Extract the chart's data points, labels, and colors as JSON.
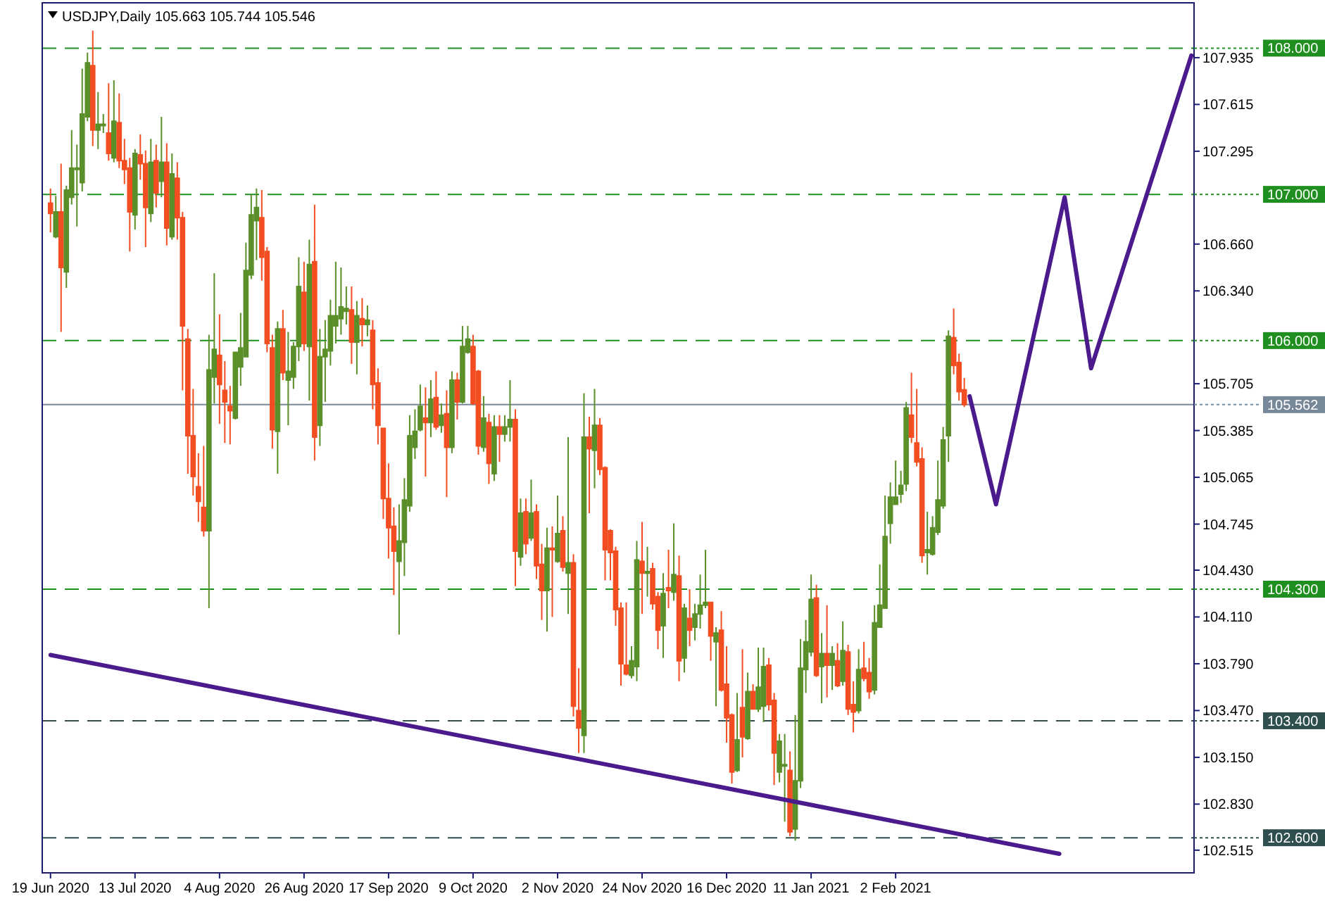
{
  "chart_data": {
    "type": "candlestick",
    "title": "USDJPY,Daily  105.663 105.744 105.546",
    "categories": [
      "19 Jun 2020",
      null,
      null,
      null,
      null,
      null,
      null,
      null,
      null,
      null,
      null,
      null,
      null,
      null,
      null,
      null,
      "13 Jul 2020",
      null,
      null,
      null,
      null,
      null,
      null,
      null,
      null,
      null,
      null,
      null,
      null,
      null,
      null,
      null,
      "4 Aug 2020",
      null,
      null,
      null,
      null,
      null,
      null,
      null,
      null,
      null,
      null,
      null,
      null,
      null,
      null,
      null,
      "26 Aug 2020",
      null,
      null,
      null,
      null,
      null,
      null,
      null,
      null,
      null,
      null,
      null,
      null,
      null,
      null,
      null,
      "17 Sep 2020",
      null,
      null,
      null,
      null,
      null,
      null,
      null,
      null,
      null,
      null,
      null,
      null,
      null,
      null,
      null,
      "9 Oct 2020",
      null,
      null,
      null,
      null,
      null,
      null,
      null,
      null,
      null,
      null,
      null,
      null,
      null,
      null,
      null,
      "2 Nov 2020",
      null,
      null,
      null,
      null,
      null,
      null,
      null,
      null,
      null,
      null,
      null,
      null,
      null,
      null,
      null,
      "24 Nov 2020",
      null,
      null,
      null,
      null,
      null,
      null,
      null,
      null,
      null,
      null,
      null,
      null,
      null,
      null,
      null,
      "16 Dec 2020",
      null,
      null,
      null,
      null,
      null,
      null,
      null,
      null,
      null,
      null,
      null,
      null,
      null,
      null,
      null,
      "11 Jan 2021",
      null,
      null,
      null,
      null,
      null,
      null,
      null,
      null,
      null,
      null,
      null,
      null,
      null,
      null,
      null,
      "2 Feb 2021",
      null,
      null,
      null,
      null,
      null,
      null,
      null,
      null,
      null,
      null,
      null,
      null,
      null,
      null,
      null,
      null,
      null,
      null,
      null,
      null,
      null,
      null,
      null,
      null,
      null,
      null,
      null,
      null,
      null,
      null,
      null,
      null,
      null,
      null,
      null,
      null,
      null,
      null,
      null,
      null,
      null,
      null,
      null,
      null,
      null,
      null,
      null,
      null,
      null,
      null,
      null,
      null,
      null,
      null,
      null,
      null
    ],
    "ohlc": [
      [
        106.94,
        107.04,
        106.74,
        106.87
      ],
      [
        106.71,
        106.99,
        106.7,
        106.88
      ],
      [
        106.88,
        107.21,
        106.06,
        106.5
      ],
      [
        106.47,
        107.06,
        106.36,
        107.03
      ],
      [
        106.98,
        107.44,
        106.93,
        107.18
      ],
      [
        107.17,
        107.34,
        106.78,
        107.18
      ],
      [
        107.08,
        107.86,
        107.02,
        107.55
      ],
      [
        107.53,
        107.97,
        107.5,
        107.9
      ],
      [
        107.88,
        108.12,
        107.33,
        107.44
      ],
      [
        107.44,
        107.7,
        107.31,
        107.48
      ],
      [
        107.47,
        107.55,
        107.42,
        107.48
      ],
      [
        107.42,
        107.76,
        107.23,
        107.28
      ],
      [
        107.25,
        107.78,
        107.22,
        107.5
      ],
      [
        107.49,
        107.69,
        107.18,
        107.23
      ],
      [
        107.23,
        107.38,
        107.07,
        107.17
      ],
      [
        107.18,
        107.25,
        106.61,
        106.88
      ],
      [
        106.86,
        107.31,
        106.76,
        107.28
      ],
      [
        107.27,
        107.41,
        107.1,
        107.21
      ],
      [
        107.21,
        107.3,
        106.64,
        106.91
      ],
      [
        106.87,
        107.38,
        106.81,
        107.22
      ],
      [
        107.23,
        107.34,
        106.91,
        107.01
      ],
      [
        107.09,
        107.53,
        106.98,
        107.22
      ],
      [
        107.22,
        107.35,
        106.65,
        106.77
      ],
      [
        106.71,
        107.28,
        106.69,
        107.14
      ],
      [
        107.11,
        107.22,
        106.69,
        106.84
      ],
      [
        106.84,
        106.88,
        105.66,
        106.1
      ],
      [
        106.01,
        106.08,
        105.09,
        105.35
      ],
      [
        105.35,
        105.67,
        104.94,
        105.07
      ],
      [
        105.0,
        105.23,
        104.76,
        104.9
      ],
      [
        104.86,
        105.28,
        104.66,
        104.7
      ],
      [
        104.7,
        106.04,
        104.17,
        105.8
      ],
      [
        105.75,
        106.46,
        105.57,
        105.94
      ],
      [
        105.9,
        106.18,
        105.43,
        105.7
      ],
      [
        105.66,
        105.86,
        105.3,
        105.58
      ],
      [
        105.55,
        105.69,
        105.29,
        105.52
      ],
      [
        105.47,
        105.92,
        105.46,
        105.92
      ],
      [
        105.82,
        106.19,
        105.69,
        105.95
      ],
      [
        105.89,
        106.67,
        105.89,
        106.48
      ],
      [
        106.45,
        107.0,
        106.42,
        106.86
      ],
      [
        106.82,
        107.04,
        106.55,
        106.91
      ],
      [
        106.84,
        107.03,
        106.41,
        106.57
      ],
      [
        106.61,
        106.64,
        105.92,
        105.98
      ],
      [
        105.95,
        106.04,
        105.26,
        105.39
      ],
      [
        105.38,
        106.13,
        105.09,
        106.08
      ],
      [
        106.08,
        106.21,
        105.73,
        105.78
      ],
      [
        105.73,
        106.06,
        105.42,
        105.79
      ],
      [
        105.75,
        105.99,
        105.67,
        105.96
      ],
      [
        105.96,
        106.57,
        105.86,
        106.37
      ],
      [
        106.33,
        106.54,
        105.93,
        105.98
      ],
      [
        105.96,
        106.69,
        105.59,
        106.52
      ],
      [
        106.54,
        106.93,
        105.18,
        105.34
      ],
      [
        105.42,
        106.08,
        105.28,
        105.89
      ],
      [
        105.89,
        106.14,
        105.58,
        105.94
      ],
      [
        105.93,
        106.28,
        105.83,
        106.17
      ],
      [
        106.1,
        106.54,
        105.98,
        106.17
      ],
      [
        106.15,
        106.5,
        106.04,
        106.23
      ],
      [
        106.2,
        106.37,
        106.11,
        106.22
      ],
      [
        106.21,
        106.37,
        105.84,
        105.99
      ],
      [
        105.99,
        106.27,
        105.77,
        106.17
      ],
      [
        106.15,
        106.29,
        105.96,
        106.11
      ],
      [
        106.11,
        106.24,
        106.03,
        106.14
      ],
      [
        106.07,
        106.14,
        105.53,
        105.7
      ],
      [
        105.71,
        105.81,
        105.29,
        105.42
      ],
      [
        105.4,
        105.4,
        104.78,
        104.92
      ],
      [
        104.92,
        105.16,
        104.51,
        104.72
      ],
      [
        104.73,
        104.86,
        104.26,
        104.56
      ],
      [
        104.49,
        104.88,
        103.99,
        104.63
      ],
      [
        104.62,
        105.06,
        104.39,
        104.91
      ],
      [
        104.87,
        105.49,
        104.83,
        105.35
      ],
      [
        105.27,
        105.53,
        105.19,
        105.38
      ],
      [
        105.39,
        105.7,
        105.38,
        105.55
      ],
      [
        105.47,
        105.68,
        105.07,
        105.44
      ],
      [
        105.44,
        105.73,
        105.34,
        105.6
      ],
      [
        105.61,
        105.79,
        105.39,
        105.41
      ],
      [
        105.42,
        105.57,
        105.37,
        105.49
      ],
      [
        105.5,
        105.66,
        104.93,
        105.27
      ],
      [
        105.27,
        105.79,
        105.23,
        105.73
      ],
      [
        105.73,
        105.78,
        105.46,
        105.58
      ],
      [
        105.58,
        106.1,
        105.57,
        105.96
      ],
      [
        105.92,
        106.1,
        105.91,
        106.01
      ],
      [
        105.96,
        106.04,
        105.56,
        105.57
      ],
      [
        105.79,
        105.8,
        105.22,
        105.28
      ],
      [
        105.27,
        105.62,
        105.24,
        105.47
      ],
      [
        105.44,
        105.5,
        105.02,
        105.16
      ],
      [
        105.09,
        105.49,
        105.04,
        105.41
      ],
      [
        105.41,
        105.49,
        105.17,
        105.36
      ],
      [
        105.36,
        105.49,
        105.31,
        105.41
      ],
      [
        105.41,
        105.73,
        105.31,
        105.46
      ],
      [
        105.46,
        105.53,
        104.32,
        104.56
      ],
      [
        104.52,
        104.92,
        104.46,
        104.82
      ],
      [
        104.83,
        104.92,
        104.54,
        104.61
      ],
      [
        104.65,
        105.05,
        104.63,
        104.82
      ],
      [
        104.83,
        104.88,
        104.37,
        104.46
      ],
      [
        104.47,
        104.61,
        104.09,
        104.29
      ],
      [
        104.29,
        104.72,
        104.01,
        104.58
      ],
      [
        104.58,
        104.73,
        104.11,
        104.57
      ],
      [
        104.49,
        104.94,
        104.48,
        104.68
      ],
      [
        104.7,
        104.8,
        104.42,
        104.45
      ],
      [
        104.41,
        105.34,
        104.13,
        104.48
      ],
      [
        104.48,
        104.54,
        103.43,
        103.5
      ],
      [
        103.47,
        103.76,
        103.18,
        103.35
      ],
      [
        103.3,
        105.64,
        103.18,
        105.34
      ],
      [
        105.34,
        105.48,
        104.82,
        105.26
      ],
      [
        105.25,
        105.67,
        104.99,
        105.42
      ],
      [
        105.42,
        105.47,
        105.08,
        105.12
      ],
      [
        105.13,
        105.14,
        104.36,
        104.57
      ],
      [
        104.7,
        104.71,
        104.36,
        104.55
      ],
      [
        104.56,
        104.59,
        104.05,
        104.16
      ],
      [
        104.17,
        104.21,
        103.64,
        103.79
      ],
      [
        103.78,
        104.21,
        103.71,
        103.72
      ],
      [
        103.71,
        103.91,
        103.69,
        103.81
      ],
      [
        103.77,
        104.63,
        103.67,
        104.5
      ],
      [
        104.49,
        104.76,
        104.13,
        104.41
      ],
      [
        104.41,
        104.59,
        104.25,
        104.42
      ],
      [
        104.44,
        104.48,
        104.16,
        104.2
      ],
      [
        104.25,
        104.28,
        103.89,
        104.02
      ],
      [
        104.05,
        104.41,
        103.83,
        104.27
      ],
      [
        104.31,
        104.57,
        104.17,
        104.29
      ],
      [
        104.28,
        104.75,
        104.22,
        104.4
      ],
      [
        104.39,
        104.53,
        103.67,
        103.81
      ],
      [
        103.83,
        104.2,
        103.73,
        104.17
      ],
      [
        104.1,
        104.3,
        103.91,
        104.02
      ],
      [
        104.04,
        104.2,
        103.95,
        104.13
      ],
      [
        104.13,
        104.4,
        104.03,
        104.19
      ],
      [
        104.19,
        104.57,
        104.17,
        104.21
      ],
      [
        104.21,
        104.21,
        103.81,
        103.98
      ],
      [
        103.94,
        104.04,
        103.5,
        104.0
      ],
      [
        104.02,
        104.15,
        103.6,
        103.61
      ],
      [
        103.65,
        103.91,
        103.25,
        103.42
      ],
      [
        103.44,
        103.45,
        102.97,
        103.05
      ],
      [
        103.06,
        103.59,
        103.05,
        103.27
      ],
      [
        103.49,
        103.89,
        103.15,
        103.29
      ],
      [
        103.28,
        103.73,
        103.27,
        103.6
      ],
      [
        103.6,
        103.65,
        103.48,
        103.48
      ],
      [
        103.48,
        103.9,
        103.46,
        103.63
      ],
      [
        103.5,
        103.9,
        103.39,
        103.77
      ],
      [
        103.78,
        103.83,
        103.47,
        103.51
      ],
      [
        103.54,
        103.59,
        102.96,
        103.18
      ],
      [
        103.05,
        103.31,
        102.98,
        103.26
      ],
      [
        103.09,
        103.31,
        102.71,
        103.1
      ],
      [
        103.06,
        103.19,
        102.61,
        102.64
      ],
      [
        102.66,
        103.44,
        102.58,
        102.99
      ],
      [
        102.99,
        103.96,
        102.94,
        103.76
      ],
      [
        103.75,
        104.09,
        103.59,
        103.94
      ],
      [
        103.87,
        104.4,
        103.84,
        104.23
      ],
      [
        104.24,
        104.33,
        103.7,
        103.71
      ],
      [
        103.77,
        104.0,
        103.52,
        103.86
      ],
      [
        103.86,
        104.19,
        103.56,
        103.78
      ],
      [
        103.78,
        103.91,
        103.61,
        103.86
      ],
      [
        103.81,
        103.93,
        103.63,
        103.64
      ],
      [
        103.67,
        104.08,
        103.64,
        103.88
      ],
      [
        103.87,
        103.92,
        103.44,
        103.48
      ],
      [
        103.51,
        103.67,
        103.32,
        103.46
      ],
      [
        103.47,
        103.89,
        103.45,
        103.75
      ],
      [
        103.76,
        103.94,
        103.67,
        103.69
      ],
      [
        103.73,
        103.83,
        103.55,
        103.6
      ],
      [
        103.61,
        104.19,
        103.58,
        104.07
      ],
      [
        104.04,
        104.47,
        104.04,
        104.19
      ],
      [
        104.17,
        104.94,
        104.17,
        104.66
      ],
      [
        104.75,
        105.03,
        104.61,
        104.93
      ],
      [
        104.88,
        105.18,
        104.88,
        104.93
      ],
      [
        104.95,
        105.11,
        104.89,
        105.01
      ],
      [
        105.02,
        105.58,
        104.97,
        105.54
      ],
      [
        105.49,
        105.78,
        105.3,
        105.34
      ],
      [
        105.3,
        105.67,
        105.14,
        105.17
      ],
      [
        105.19,
        105.27,
        104.48,
        104.53
      ],
      [
        104.55,
        104.83,
        104.4,
        104.57
      ],
      [
        104.54,
        104.8,
        104.53,
        104.72
      ],
      [
        104.69,
        105.18,
        104.67,
        104.91
      ],
      [
        104.87,
        105.41,
        104.85,
        105.32
      ],
      [
        105.35,
        106.07,
        105.17,
        106.03
      ],
      [
        106.02,
        106.22,
        105.77,
        105.83
      ],
      [
        105.85,
        105.91,
        105.59,
        105.65
      ],
      [
        105.663,
        105.744,
        105.546,
        105.562
      ],
      null,
      null,
      null,
      null,
      null,
      null,
      null,
      null,
      null,
      null,
      null,
      null,
      null,
      null,
      null,
      null,
      null,
      null,
      null,
      null,
      null,
      null,
      null,
      null,
      null,
      null,
      null,
      null,
      null,
      null,
      null,
      null,
      null,
      null,
      null,
      null,
      null,
      null,
      null,
      null,
      null,
      null,
      null
    ],
    "series": [
      {
        "type": "line",
        "color": "#4b1a8c",
        "values": [
          null,
          null,
          null,
          null,
          null,
          null,
          null,
          null,
          null,
          null,
          null,
          null,
          null,
          null,
          null,
          null,
          null,
          null,
          null,
          null,
          null,
          null,
          null,
          null,
          null,
          null,
          null,
          null,
          null,
          null,
          null,
          null,
          null,
          null,
          null,
          null,
          null,
          null,
          null,
          null,
          null,
          null,
          null,
          null,
          null,
          null,
          null,
          null,
          null,
          null,
          null,
          null,
          null,
          null,
          null,
          null,
          null,
          null,
          null,
          null,
          null,
          null,
          null,
          null,
          null,
          null,
          null,
          null,
          null,
          null,
          null,
          null,
          null,
          null,
          null,
          null,
          null,
          null,
          null,
          null,
          null,
          null,
          null,
          null,
          null,
          null,
          null,
          null,
          null,
          null,
          null,
          null,
          null,
          null,
          null,
          null,
          null,
          null,
          null,
          null,
          null,
          null,
          null,
          null,
          null,
          null,
          null,
          null,
          null,
          null,
          null,
          null,
          null,
          null,
          null,
          null,
          null,
          null,
          null,
          null,
          null,
          null,
          null,
          null,
          null,
          null,
          null,
          null,
          null,
          null,
          null,
          null,
          null,
          null,
          null,
          null,
          null,
          null,
          null,
          null,
          null,
          null,
          null,
          null,
          null,
          null,
          null,
          null,
          null,
          null,
          null,
          null,
          null,
          null,
          null,
          null,
          null,
          null,
          null,
          null,
          null,
          null,
          null,
          null,
          null,
          null,
          null,
          null,
          null,
          null,
          null,
          null,
          null,
          null,
          105.62,
          null,
          null,
          null,
          null,
          104.88,
          null,
          null,
          null,
          null,
          null,
          null,
          null,
          null,
          null,
          null,
          null,
          null,
          106.98,
          null,
          null,
          null,
          null,
          105.81,
          null,
          null,
          null,
          null,
          null,
          null,
          null,
          null,
          null,
          null,
          null,
          null,
          null,
          null,
          null,
          null,
          null,
          null,
          107.95
        ]
      },
      {
        "type": "line",
        "color": "#4b1a8c",
        "values": [
          103.85,
          null,
          null,
          null,
          null,
          null,
          null,
          null,
          null,
          null,
          null,
          null,
          null,
          null,
          null,
          null,
          null,
          null,
          null,
          null,
          null,
          null,
          null,
          null,
          null,
          null,
          null,
          null,
          null,
          null,
          null,
          null,
          null,
          null,
          null,
          null,
          null,
          null,
          null,
          null,
          null,
          null,
          null,
          null,
          null,
          null,
          null,
          null,
          null,
          null,
          null,
          null,
          null,
          null,
          null,
          null,
          null,
          null,
          null,
          null,
          null,
          null,
          null,
          null,
          null,
          null,
          null,
          null,
          null,
          null,
          null,
          null,
          null,
          null,
          null,
          null,
          null,
          null,
          null,
          null,
          null,
          null,
          null,
          null,
          null,
          null,
          null,
          null,
          null,
          null,
          null,
          null,
          null,
          null,
          null,
          null,
          null,
          null,
          null,
          null,
          null,
          null,
          null,
          null,
          null,
          null,
          null,
          null,
          null,
          null,
          null,
          null,
          null,
          null,
          null,
          null,
          null,
          null,
          null,
          null,
          null,
          null,
          null,
          null,
          null,
          null,
          null,
          null,
          null,
          null,
          null,
          null,
          null,
          null,
          null,
          null,
          null,
          null,
          null,
          null,
          null,
          null,
          null,
          null,
          null,
          null,
          null,
          null,
          null,
          null,
          null,
          null,
          null,
          null,
          null,
          null,
          null,
          null,
          null,
          null,
          null,
          null,
          null,
          null,
          null,
          null,
          null,
          null,
          null,
          null,
          null,
          null,
          null,
          null,
          null,
          null,
          null,
          null,
          null,
          null,
          null,
          null,
          null,
          null,
          null,
          null,
          null,
          null,
          null,
          null,
          null,
          102.49,
          null,
          null,
          null,
          null,
          null,
          null,
          null,
          null,
          null,
          null,
          null,
          null,
          null,
          null,
          null,
          null,
          null,
          null,
          null,
          null,
          null,
          null,
          null,
          null,
          null
        ]
      }
    ],
    "ylim": [
      102.36,
      108.31
    ],
    "yticks": [
      {
        "value": 107.935,
        "label": "107.935"
      },
      {
        "value": 107.615,
        "label": "107.615"
      },
      {
        "value": 107.295,
        "label": "107.295"
      },
      {
        "value": 106.66,
        "label": "106.660"
      },
      {
        "value": 106.34,
        "label": "106.340"
      },
      {
        "value": 105.705,
        "label": "105.705"
      },
      {
        "value": 105.385,
        "label": "105.385"
      },
      {
        "value": 105.065,
        "label": "105.065"
      },
      {
        "value": 104.745,
        "label": "104.745"
      },
      {
        "value": 104.43,
        "label": "104.430"
      },
      {
        "value": 104.11,
        "label": "104.110"
      },
      {
        "value": 103.79,
        "label": "103.790"
      },
      {
        "value": 103.47,
        "label": "103.470"
      },
      {
        "value": 103.15,
        "label": "103.150"
      },
      {
        "value": 102.83,
        "label": "102.830"
      },
      {
        "value": 102.515,
        "label": "102.515"
      }
    ],
    "ref_lines": [
      {
        "axis": "y",
        "value": 108,
        "label": "108.000",
        "color": "#1f8f1f",
        "line_style": "dashed"
      },
      {
        "axis": "y",
        "value": 107,
        "label": "107.000",
        "color": "#1f8f1f",
        "line_style": "dashed"
      },
      {
        "axis": "y",
        "value": 106,
        "label": "106.000",
        "color": "#1f8f1f",
        "line_style": "dashed"
      },
      {
        "axis": "y",
        "value": 104.3,
        "label": "104.300",
        "color": "#1f8f1f",
        "line_style": "dashed"
      },
      {
        "axis": "y",
        "value": 103.4,
        "label": "103.400",
        "color": "#2f4f4f",
        "line_style": "dashed"
      },
      {
        "axis": "y",
        "value": 102.6,
        "label": "102.600",
        "color": "#2f4f4f",
        "line_style": "dashed"
      },
      {
        "axis": "y",
        "value": 105.562,
        "label": "105.562",
        "color": "#778899",
        "line_style": "solid"
      }
    ],
    "grid": false
  }
}
